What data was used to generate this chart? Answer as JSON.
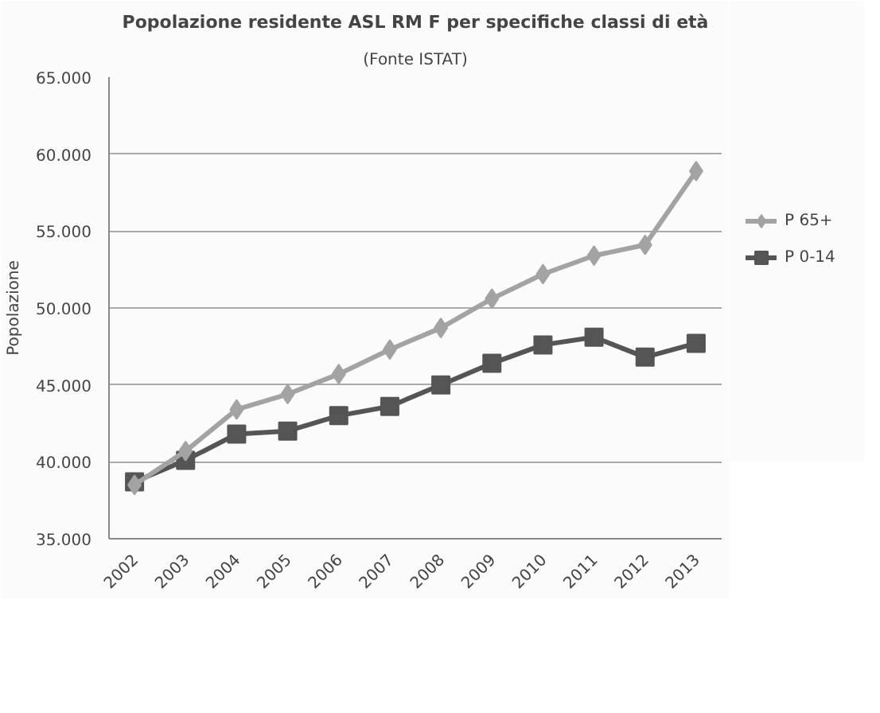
{
  "chart_data": {
    "type": "line",
    "title": "Popolazione residente ASL RM F per specifiche classi di età",
    "subtitle": "(Fonte ISTAT)",
    "ylabel": "Popolazione",
    "categories": [
      "2002",
      "2003",
      "2004",
      "2005",
      "2006",
      "2007",
      "2008",
      "2009",
      "2010",
      "2011",
      "2012",
      "2013"
    ],
    "series": [
      {
        "name": "P 65+",
        "color": "#a3a3a3",
        "marker": "diamond",
        "values": [
          38500,
          40700,
          43400,
          44400,
          45700,
          47300,
          48700,
          50600,
          52200,
          53400,
          54100,
          58900
        ]
      },
      {
        "name": "P 0-14",
        "color": "#555555",
        "marker": "square",
        "values": [
          38700,
          40100,
          41800,
          42000,
          43000,
          43600,
          45000,
          46400,
          47600,
          48100,
          46800,
          47700
        ]
      }
    ],
    "ylim": [
      35000,
      65000
    ],
    "yticks": [
      {
        "value": 35000,
        "label": "35.000"
      },
      {
        "value": 40000,
        "label": "40.000"
      },
      {
        "value": 45000,
        "label": "45.000"
      },
      {
        "value": 50000,
        "label": "50.000"
      },
      {
        "value": 55000,
        "label": "55.000"
      },
      {
        "value": 60000,
        "label": "60.000"
      },
      {
        "value": 65000,
        "label": "65.000"
      }
    ],
    "grid": "y",
    "legend": "right",
    "line_style": "solid"
  }
}
